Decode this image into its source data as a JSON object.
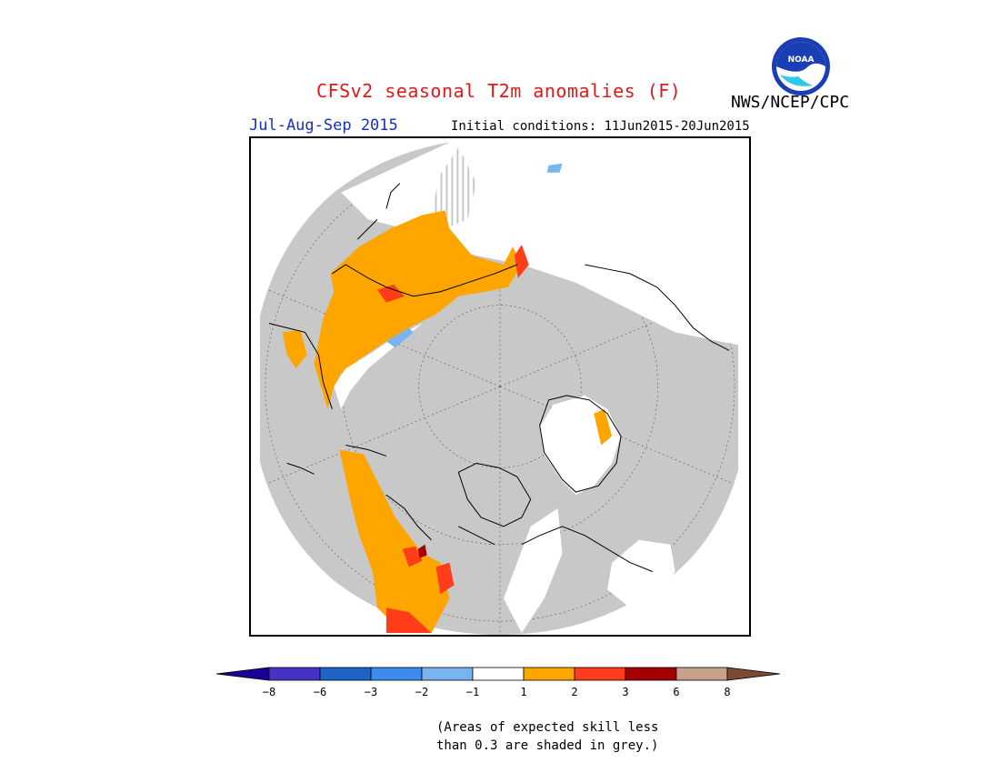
{
  "header": {
    "title": "CFSv2 seasonal T2m anomalies (F)",
    "season": "Jul-Aug-Sep 2015",
    "initial_conditions": "Initial conditions: 11Jun2015-20Jun2015",
    "organization": "NWS/NCEP/CPC",
    "logo_text": "NOAA"
  },
  "map": {
    "projection": "north polar stereographic",
    "colors": {
      "skill_mask_grey": "#c8c8c8",
      "near_normal_white": "#ffffff",
      "warm_1_2": "#ffa500",
      "warm_2_3": "#ff3d1a",
      "warm_3_6": "#a50000",
      "cool_1_2": "#78b4f0"
    }
  },
  "legend": {
    "colors": [
      "#1a0096",
      "#4632c8",
      "#1e64c8",
      "#3c8cf0",
      "#78b4f0",
      "#ffffff",
      "#ffa500",
      "#ff3d1a",
      "#a50000",
      "#c8a08c",
      "#7a4a35"
    ],
    "tick_labels": [
      "−8",
      "−6",
      "−3",
      "−2",
      "−1",
      "1",
      "2",
      "3",
      "6",
      "8"
    ]
  },
  "note": {
    "line1": "(Areas of expected skill less",
    "line2": "than 0.3 are shaded in grey.)"
  }
}
